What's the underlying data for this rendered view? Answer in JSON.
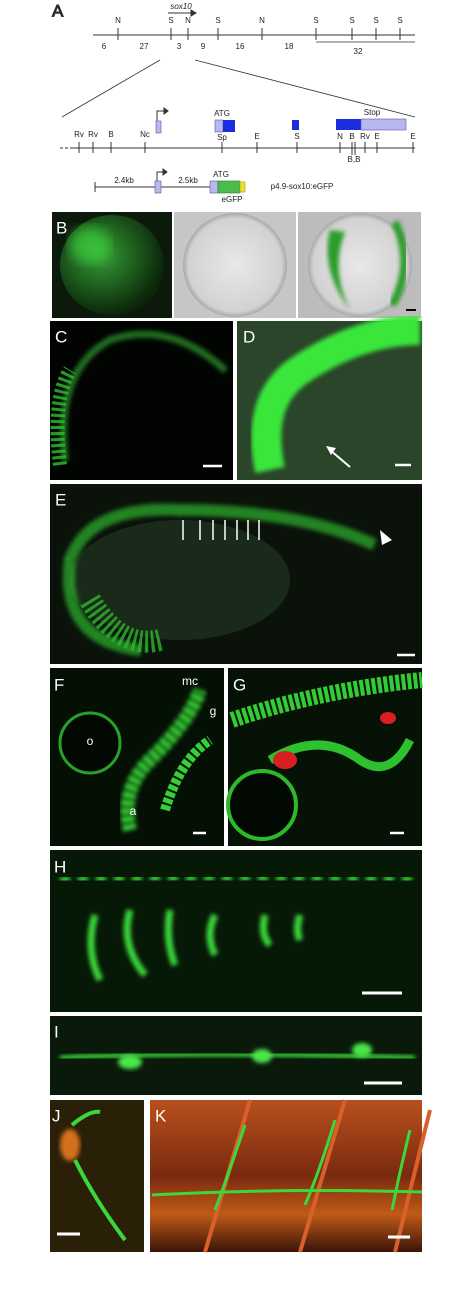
{
  "panel_labels": [
    "A",
    "B",
    "C",
    "D",
    "E",
    "F",
    "G",
    "H",
    "I",
    "J",
    "K"
  ],
  "map": {
    "gene": "sox10",
    "top_sites": [
      "N",
      "S",
      "N",
      "S",
      "N",
      "S",
      "S",
      "S",
      "S"
    ],
    "fragment_sizes": [
      "6",
      "27",
      "3",
      "9",
      "16",
      "18",
      "32"
    ],
    "atg": "ATG",
    "stop": "Stop",
    "lower_sites": [
      "Rv",
      "Rv",
      "B",
      "Nc",
      "Sp",
      "E",
      "S",
      "N",
      "B",
      "Rv",
      "E",
      "E"
    ],
    "bb": "B,B"
  },
  "construct": {
    "left_length": "2.4kb",
    "right_length": "2.5kb",
    "atg": "ATG",
    "reporter": "eGFP",
    "name": "p4.9-sox10:eGFP"
  },
  "annotations": [
    "mc",
    "g",
    "o",
    "a"
  ]
}
